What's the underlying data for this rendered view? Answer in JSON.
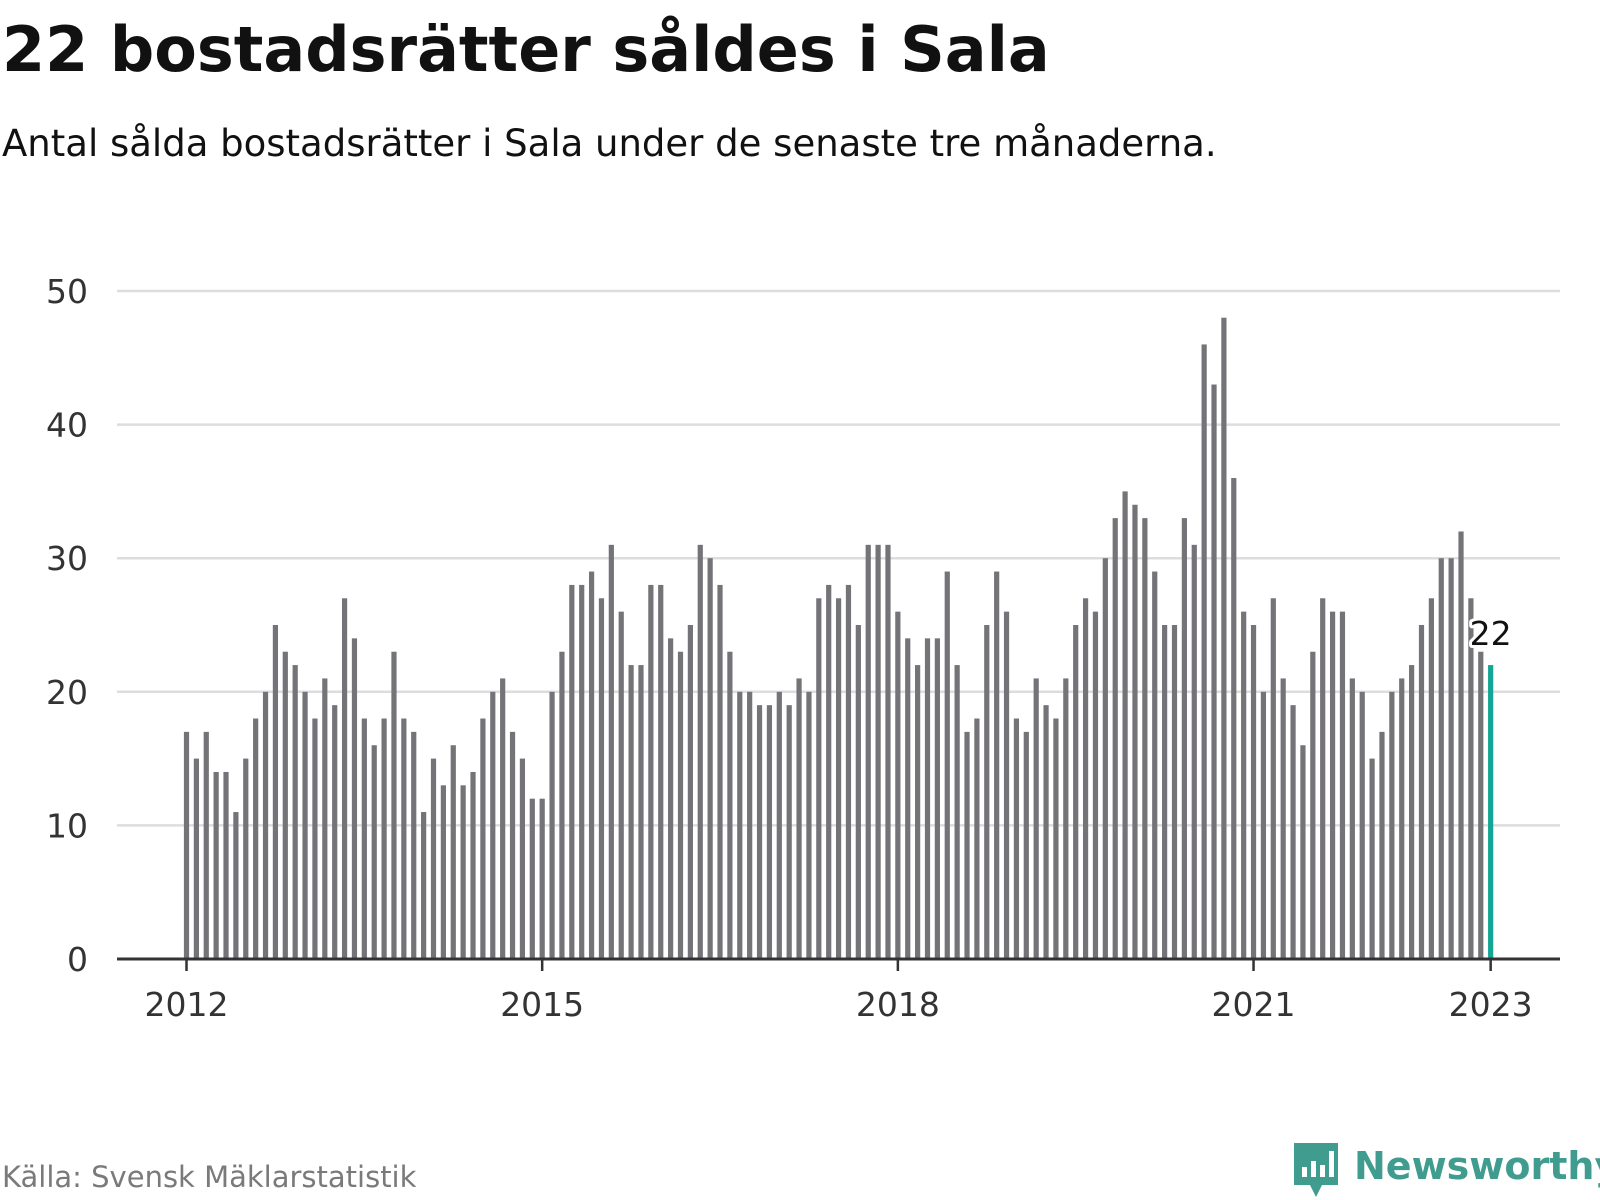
{
  "title": "22 bostadsrätter såldes i Sala",
  "subtitle": "Antal sålda bostadsrätter i Sala under de senaste tre månaderna.",
  "source": "Källa: Svensk Mäklarstatistik",
  "brand": {
    "name": "Newsworthy",
    "icon": "newsworthy-logo-icon",
    "color": "#3f9c8f"
  },
  "colors": {
    "bar": "#737378",
    "highlight": "#13a595",
    "grid": "#dddddd",
    "axis": "#333333",
    "text": "#111111",
    "tick_text": "#333333"
  },
  "chart_data": {
    "type": "bar",
    "title": "22 bostadsrätter såldes i Sala",
    "subtitle": "Antal sålda bostadsrätter i Sala under de senaste tre månaderna.",
    "xlabel": "",
    "ylabel": "",
    "ylim": [
      0,
      50
    ],
    "yticks": [
      0,
      10,
      20,
      30,
      40,
      50
    ],
    "grid": true,
    "x_start": "2012-01",
    "x_ticks": [
      {
        "label": "2012",
        "month": "2012-01"
      },
      {
        "label": "2015",
        "month": "2015-01"
      },
      {
        "label": "2018",
        "month": "2018-01"
      },
      {
        "label": "2021",
        "month": "2021-01"
      },
      {
        "label": "2023",
        "month": "2023-01"
      }
    ],
    "values": [
      17,
      15,
      17,
      14,
      14,
      11,
      15,
      18,
      20,
      25,
      23,
      22,
      20,
      18,
      21,
      19,
      27,
      24,
      18,
      16,
      18,
      23,
      18,
      17,
      11,
      15,
      13,
      16,
      13,
      14,
      18,
      20,
      21,
      17,
      15,
      12,
      12,
      20,
      23,
      28,
      28,
      29,
      27,
      31,
      26,
      22,
      22,
      28,
      28,
      24,
      23,
      25,
      31,
      30,
      28,
      23,
      20,
      20,
      19,
      19,
      20,
      19,
      21,
      20,
      27,
      28,
      27,
      28,
      25,
      31,
      31,
      31,
      26,
      24,
      22,
      24,
      24,
      29,
      22,
      17,
      18,
      25,
      29,
      26,
      18,
      17,
      21,
      19,
      18,
      21,
      25,
      27,
      26,
      30,
      33,
      35,
      34,
      33,
      29,
      25,
      25,
      33,
      31,
      46,
      43,
      48,
      36,
      26,
      25,
      20,
      27,
      21,
      19,
      16,
      23,
      27,
      26,
      26,
      21,
      20,
      15,
      17,
      20,
      21,
      22,
      25,
      27,
      30,
      30,
      32,
      27,
      23,
      22
    ],
    "highlight": {
      "month": "2023-01",
      "value": 22,
      "label": "22"
    }
  }
}
